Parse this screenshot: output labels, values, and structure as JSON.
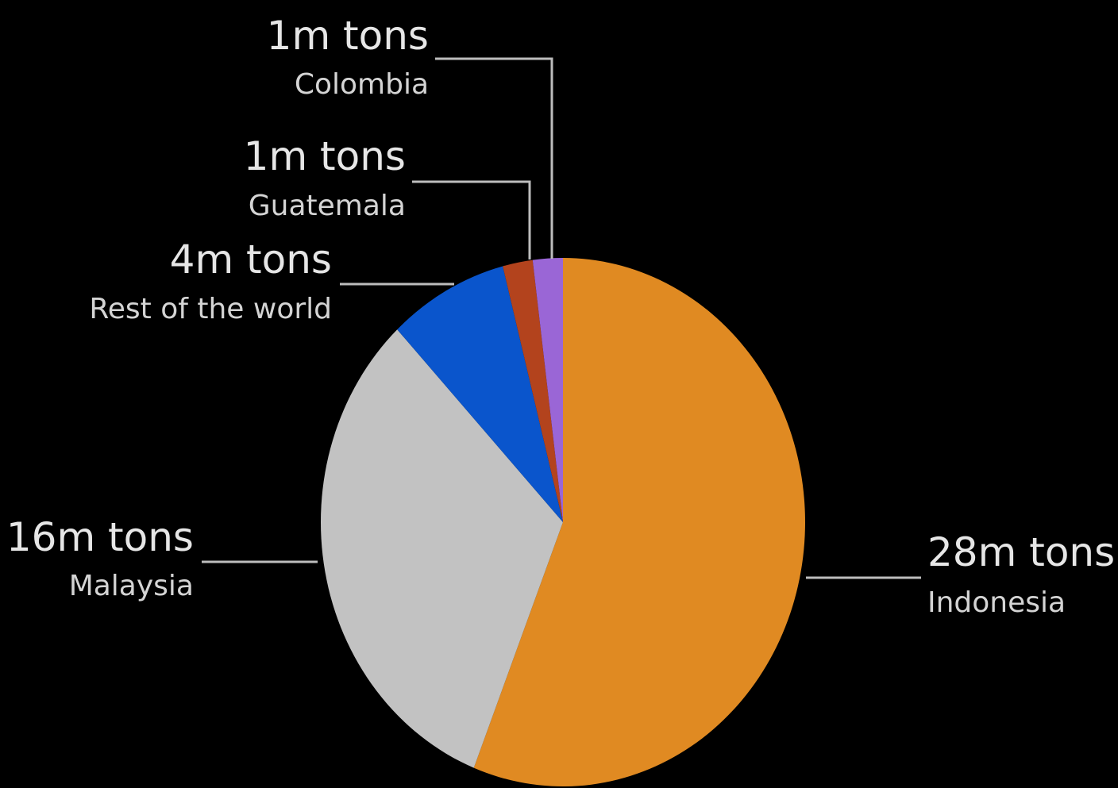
{
  "chart_data": {
    "type": "pie",
    "title": "",
    "unit": "m tons",
    "slices": [
      {
        "name": "Indonesia",
        "value": 28,
        "label": "28m tons",
        "color": "#e08a22"
      },
      {
        "name": "Malaysia",
        "value": 16,
        "label": "16m tons",
        "color": "#c2c2c2"
      },
      {
        "name": "Rest of the world",
        "value": 4,
        "label": "4m tons",
        "color": "#0a55cc"
      },
      {
        "name": "Guatemala",
        "value": 1,
        "label": "1m tons",
        "color": "#b3431d"
      },
      {
        "name": "Colombia",
        "value": 1,
        "label": "1m tons",
        "color": "#9a66d6"
      }
    ],
    "legend": "none"
  }
}
